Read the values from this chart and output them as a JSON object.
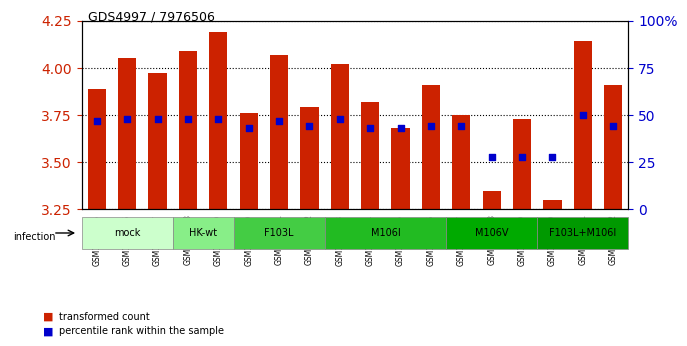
{
  "title": "GDS4997 / 7976506",
  "samples": [
    "GSM1172635",
    "GSM1172636",
    "GSM1172637",
    "GSM1172638",
    "GSM1172639",
    "GSM1172640",
    "GSM1172641",
    "GSM1172642",
    "GSM1172643",
    "GSM1172644",
    "GSM1172645",
    "GSM1172646",
    "GSM1172647",
    "GSM1172648",
    "GSM1172649",
    "GSM1172650",
    "GSM1172651",
    "GSM1172652"
  ],
  "bar_values": [
    3.89,
    4.05,
    3.97,
    4.09,
    4.19,
    3.76,
    4.07,
    3.79,
    4.02,
    3.82,
    3.68,
    3.91,
    3.75,
    3.35,
    3.73,
    3.3,
    4.14,
    3.91
  ],
  "percentile_values": [
    3.64,
    3.65,
    3.65,
    3.65,
    3.65,
    3.62,
    3.64,
    3.63,
    3.65,
    3.62,
    3.62,
    3.63,
    3.63,
    3.57,
    3.57,
    3.57,
    3.66,
    3.63
  ],
  "percentile_pct": [
    47,
    48,
    48,
    48,
    48,
    43,
    47,
    44,
    48,
    43,
    43,
    44,
    44,
    28,
    28,
    28,
    50,
    44
  ],
  "ylim_left": [
    3.25,
    4.25
  ],
  "ylim_right": [
    0,
    100
  ],
  "yticks_left": [
    3.25,
    3.5,
    3.75,
    4.0,
    4.25
  ],
  "yticks_right": [
    0,
    25,
    50,
    75,
    100
  ],
  "ytick_labels_right": [
    "0",
    "25",
    "50",
    "75",
    "100%"
  ],
  "bar_color": "#cc2200",
  "percentile_color": "#0000cc",
  "bar_bottom": 3.25,
  "groups": [
    {
      "label": "mock",
      "start": 0,
      "end": 2,
      "color": "#ccffcc"
    },
    {
      "label": "HK-wt",
      "start": 3,
      "end": 4,
      "color": "#88ee88"
    },
    {
      "label": "F103L",
      "start": 5,
      "end": 7,
      "color": "#44cc44"
    },
    {
      "label": "M106I",
      "start": 8,
      "end": 11,
      "color": "#22bb22"
    },
    {
      "label": "M106V",
      "start": 12,
      "end": 14,
      "color": "#00aa00"
    },
    {
      "label": "F103L+M106I",
      "start": 15,
      "end": 17,
      "color": "#009900"
    }
  ],
  "infection_label": "infection",
  "legend_red_label": "transformed count",
  "legend_blue_label": "percentile rank within the sample",
  "grid_color": "#000000",
  "tick_color_left": "#cc2200",
  "tick_color_right": "#0000cc",
  "background_plot": "#ffffff",
  "background_label": "#cccccc"
}
